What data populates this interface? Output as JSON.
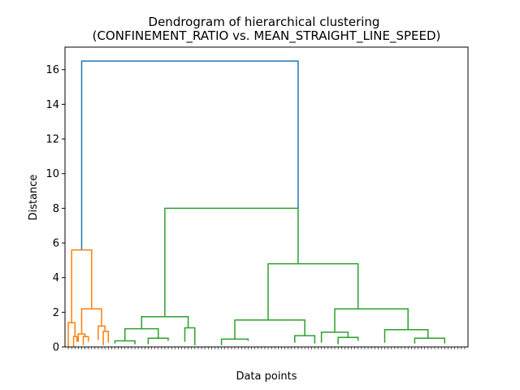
{
  "chart_data": {
    "type": "dendrogram",
    "title_line1": "Dendrogram of hierarchical clustering",
    "title_line2": "(CONFINEMENT_RATIO vs. MEAN_STRAIGHT_LINE_SPEED)",
    "xlabel": "Data points",
    "ylabel": "Distance",
    "ylim": [
      0,
      17.3
    ],
    "yticks": [
      0,
      2,
      4,
      6,
      8,
      10,
      12,
      14,
      16
    ],
    "leaf_count": 120,
    "colors": {
      "root": "#1f77b4",
      "cluster_small": "#ff7f0e",
      "cluster_large": "#2ca02c"
    },
    "links": [
      {
        "x": [
          4,
          4,
          69,
          69
        ],
        "y": [
          5.6,
          16.5,
          16.5,
          8.0
        ],
        "color": "root"
      },
      {
        "x": [
          1,
          1,
          7,
          7
        ],
        "y": [
          1.4,
          5.6,
          5.6,
          2.2
        ],
        "color": "cluster_small"
      },
      {
        "x": [
          0,
          0,
          2,
          2
        ],
        "y": [
          0,
          1.4,
          1.4,
          0.6
        ],
        "color": "cluster_small"
      },
      {
        "x": [
          1.6,
          1.6,
          2.6,
          2.6
        ],
        "y": [
          0,
          0.6,
          0.6,
          0.3
        ],
        "color": "cluster_small"
      },
      {
        "x": [
          4,
          4,
          10,
          10
        ],
        "y": [
          0.75,
          2.2,
          2.2,
          1.2
        ],
        "color": "cluster_small"
      },
      {
        "x": [
          3,
          3,
          5,
          5
        ],
        "y": [
          0.3,
          0.75,
          0.75,
          0.6
        ],
        "color": "cluster_small"
      },
      {
        "x": [
          4.5,
          4.5,
          6,
          6
        ],
        "y": [
          0.1,
          0.6,
          0.6,
          0.3
        ],
        "color": "cluster_small"
      },
      {
        "x": [
          9,
          9,
          11,
          11
        ],
        "y": [
          0.4,
          1.2,
          1.2,
          0.9
        ],
        "color": "cluster_small"
      },
      {
        "x": [
          10.5,
          10.5,
          12,
          12
        ],
        "y": [
          0.1,
          0.9,
          0.9,
          0.25
        ],
        "color": "cluster_small"
      },
      {
        "x": [
          29,
          29,
          69,
          69
        ],
        "y": [
          1.75,
          8.0,
          8.0,
          4.8
        ],
        "color": "cluster_large"
      },
      {
        "x": [
          22,
          22,
          36,
          36
        ],
        "y": [
          1.05,
          1.75,
          1.75,
          1.1
        ],
        "color": "cluster_large"
      },
      {
        "x": [
          17,
          17,
          27,
          27
        ],
        "y": [
          0.35,
          1.05,
          1.05,
          0.5
        ],
        "color": "cluster_large"
      },
      {
        "x": [
          14,
          14,
          20,
          20
        ],
        "y": [
          0.2,
          0.35,
          0.35,
          0.15
        ],
        "color": "cluster_large"
      },
      {
        "x": [
          24,
          24,
          30,
          30
        ],
        "y": [
          0.15,
          0.5,
          0.5,
          0.35
        ],
        "color": "cluster_large"
      },
      {
        "x": [
          35,
          35,
          38,
          38
        ],
        "y": [
          0.3,
          1.1,
          1.1,
          0.1
        ],
        "color": "cluster_large"
      },
      {
        "x": [
          60,
          60,
          87,
          87
        ],
        "y": [
          1.55,
          4.8,
          4.8,
          2.2
        ],
        "color": "cluster_large"
      },
      {
        "x": [
          50,
          50,
          71,
          71
        ],
        "y": [
          0.45,
          1.55,
          1.55,
          0.65
        ],
        "color": "cluster_large"
      },
      {
        "x": [
          46,
          46,
          54,
          54
        ],
        "y": [
          0.1,
          0.45,
          0.45,
          0.35
        ],
        "color": "cluster_large"
      },
      {
        "x": [
          68,
          68,
          74,
          74
        ],
        "y": [
          0.25,
          0.65,
          0.65,
          0.2
        ],
        "color": "cluster_large"
      },
      {
        "x": [
          80,
          80,
          102,
          102
        ],
        "y": [
          0.85,
          2.2,
          2.2,
          1.0
        ],
        "color": "cluster_large"
      },
      {
        "x": [
          76,
          76,
          84,
          84
        ],
        "y": [
          0.25,
          0.85,
          0.85,
          0.55
        ],
        "color": "cluster_large"
      },
      {
        "x": [
          81,
          81,
          87,
          87
        ],
        "y": [
          0.15,
          0.55,
          0.55,
          0.35
        ],
        "color": "cluster_large"
      },
      {
        "x": [
          95,
          95,
          108,
          108
        ],
        "y": [
          0.25,
          1.0,
          1.0,
          0.5
        ],
        "color": "cluster_large"
      },
      {
        "x": [
          104,
          104,
          113,
          113
        ],
        "y": [
          0.2,
          0.5,
          0.5,
          0.2
        ],
        "color": "cluster_large"
      }
    ]
  }
}
